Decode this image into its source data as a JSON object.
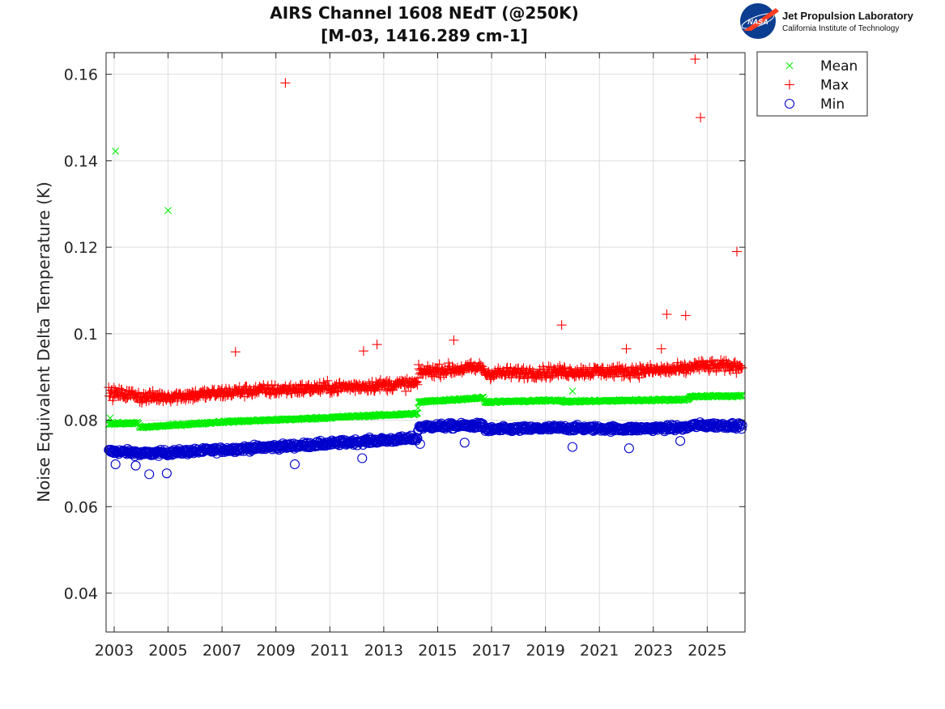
{
  "logo": {
    "badge_text": "NASA",
    "title": "Jet Propulsion Laboratory",
    "subtitle": "California Institute of Technology"
  },
  "colors": {
    "mean": "#00ee00",
    "max": "#ff0000",
    "min": "#0000cc",
    "grid": "#dddddd",
    "axis": "#262626",
    "nasa_blue": "#0b3d91",
    "nasa_red": "#fc3d21"
  },
  "chart_data": {
    "type": "scatter",
    "title": "AIRS Channel 1608 NEdT (@250K)",
    "subtitle": "[M-03, 1416.289 cm-1]",
    "xlabel": "",
    "ylabel": "Noise Equivalent Delta Temperature (K)",
    "xlim": [
      2002.7,
      2026.4
    ],
    "ylim": [
      0.031,
      0.165
    ],
    "xticks": [
      2003,
      2005,
      2007,
      2009,
      2011,
      2013,
      2015,
      2017,
      2019,
      2021,
      2023,
      2025
    ],
    "yticks": [
      0.04,
      0.06,
      0.08,
      0.1,
      0.12,
      0.14,
      0.16
    ],
    "ytick_labels": [
      "0.04",
      "0.06",
      "0.08",
      "0.1",
      "0.12",
      "0.14",
      "0.16"
    ],
    "grid": true,
    "legend_position": "outside-top-right",
    "series": [
      {
        "name": "Mean",
        "marker": "x",
        "color": "#00ee00",
        "trend": [
          [
            2002.8,
            0.0792
          ],
          [
            2003.9,
            0.0793
          ],
          [
            2003.95,
            0.0783
          ],
          [
            2007.0,
            0.0796
          ],
          [
            2010.0,
            0.0803
          ],
          [
            2012.0,
            0.0809
          ],
          [
            2014.25,
            0.0815
          ],
          [
            2014.3,
            0.0842
          ],
          [
            2016.7,
            0.0852
          ],
          [
            2016.75,
            0.0842
          ],
          [
            2019.6,
            0.0846
          ],
          [
            2019.7,
            0.0843
          ],
          [
            2024.3,
            0.0848
          ],
          [
            2024.4,
            0.0855
          ],
          [
            2026.3,
            0.0856
          ]
        ],
        "noise": 0.0004,
        "outliers": [
          [
            2002.85,
            0.0805
          ],
          [
            2003.05,
            0.1422
          ],
          [
            2005.0,
            0.1285
          ],
          [
            2020.0,
            0.0867
          ]
        ]
      },
      {
        "name": "Max",
        "marker": "+",
        "color": "#ff0000",
        "trend": [
          [
            2002.8,
            0.0862
          ],
          [
            2003.9,
            0.0858
          ],
          [
            2003.95,
            0.0852
          ],
          [
            2006.0,
            0.0858
          ],
          [
            2008.0,
            0.0868
          ],
          [
            2010.0,
            0.0872
          ],
          [
            2012.0,
            0.0878
          ],
          [
            2014.25,
            0.0885
          ],
          [
            2014.3,
            0.0912
          ],
          [
            2016.7,
            0.0922
          ],
          [
            2016.75,
            0.0908
          ],
          [
            2019.6,
            0.0912
          ],
          [
            2022.0,
            0.0913
          ],
          [
            2024.3,
            0.0918
          ],
          [
            2024.4,
            0.0925
          ],
          [
            2026.3,
            0.0925
          ]
        ],
        "noise": 0.0022,
        "outliers": [
          [
            2007.5,
            0.0958
          ],
          [
            2009.35,
            0.158
          ],
          [
            2012.25,
            0.096
          ],
          [
            2012.75,
            0.0975
          ],
          [
            2015.6,
            0.0985
          ],
          [
            2019.6,
            0.102
          ],
          [
            2022.0,
            0.0965
          ],
          [
            2023.3,
            0.0965
          ],
          [
            2023.5,
            0.1045
          ],
          [
            2024.2,
            0.1042
          ],
          [
            2024.55,
            0.1635
          ],
          [
            2024.75,
            0.15
          ],
          [
            2026.1,
            0.119
          ]
        ]
      },
      {
        "name": "Min",
        "marker": "o",
        "color": "#0000cc",
        "trend": [
          [
            2002.8,
            0.0728
          ],
          [
            2003.9,
            0.0725
          ],
          [
            2003.95,
            0.0722
          ],
          [
            2006.0,
            0.0728
          ],
          [
            2008.0,
            0.0735
          ],
          [
            2010.0,
            0.0742
          ],
          [
            2012.0,
            0.075
          ],
          [
            2014.25,
            0.0758
          ],
          [
            2014.3,
            0.0785
          ],
          [
            2016.7,
            0.0788
          ],
          [
            2016.75,
            0.0778
          ],
          [
            2019.6,
            0.0782
          ],
          [
            2022.0,
            0.078
          ],
          [
            2024.3,
            0.0783
          ],
          [
            2024.4,
            0.0788
          ],
          [
            2026.3,
            0.0788
          ]
        ],
        "noise": 0.0011,
        "outliers": [
          [
            2003.05,
            0.0698
          ],
          [
            2003.8,
            0.0695
          ],
          [
            2004.3,
            0.0675
          ],
          [
            2004.95,
            0.0677
          ],
          [
            2009.7,
            0.0698
          ],
          [
            2012.2,
            0.0712
          ],
          [
            2014.35,
            0.0745
          ],
          [
            2016.0,
            0.0748
          ],
          [
            2020.0,
            0.0738
          ],
          [
            2022.1,
            0.0735
          ],
          [
            2024.0,
            0.0752
          ]
        ]
      }
    ]
  },
  "legend": {
    "entries": [
      {
        "label": "Mean",
        "marker": "x",
        "color": "#00ee00"
      },
      {
        "label": "Max",
        "marker": "+",
        "color": "#ff0000"
      },
      {
        "label": "Min",
        "marker": "o",
        "color": "#0000cc"
      }
    ]
  }
}
